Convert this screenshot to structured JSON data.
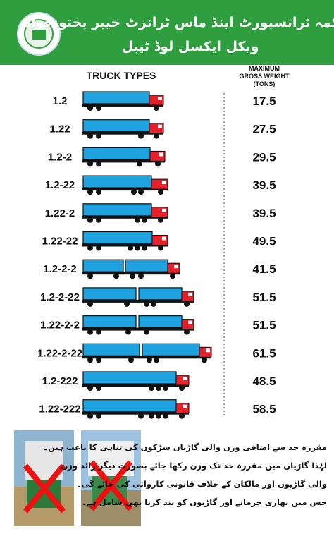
{
  "header": {
    "title": "محکمہ ٹرانسپورٹ اینڈ ماس ٹرانزٹ خیبر پختونخواہ",
    "subtitle": "ویکل ایکسل لوڈ ٹیبل"
  },
  "table": {
    "columns": [
      "TRUCK TYPES",
      [
        "MAXIMUM",
        "GROSS WEIGHT",
        "(TONS)"
      ]
    ],
    "rows": [
      [
        "1.2",
        17.5
      ],
      [
        "1.22",
        27.5
      ],
      [
        "1.2-2",
        29.5
      ],
      [
        "1.2-22",
        39.5
      ],
      [
        "1.22-2",
        39.5
      ],
      [
        "1.22-22",
        49.5
      ],
      [
        "1.2-2-2",
        41.5
      ],
      [
        "1.2-2-22",
        51.5
      ],
      [
        "1.22-2-2",
        51.5
      ],
      [
        "1.22-2-22",
        61.5
      ],
      [
        "1.2-222",
        48.5
      ],
      [
        "1.22-222",
        58.5
      ]
    ]
  },
  "notice": [
    "مقررہ حد سے اضافی وزن والی گاڑیاں سڑکوں کی تباہی کا باعث ہیں۔",
    "لہٰذا گاڑیاں میں مقررہ حد تک وزن رکھا جائے بصورت دیگر زائد وزن",
    "والی گاڑیوں اور مالکان کے خلاف قانونی کاروائی کی جائے گی۔",
    "جس میں بھاری جرمانے اور گاڑیوں کو بند کرنا بھی شامل ہے۔"
  ]
}
